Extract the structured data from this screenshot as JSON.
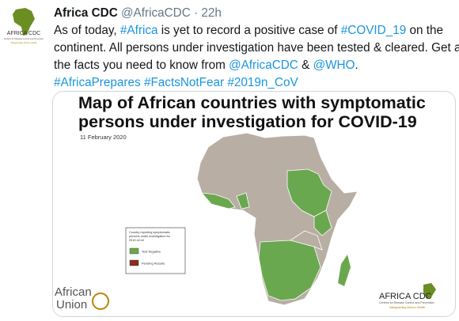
{
  "tweet": {
    "author": "Africa CDC",
    "handle": "@AfricaCDC",
    "separator": "·",
    "time": "22h",
    "avatar": {
      "name": "AFRICA CDC",
      "subtitle": "Centres for Disease Control and Prevention",
      "tagline": "Safeguarding Africa's Health"
    },
    "lines": [
      [
        {
          "text": "As of today, "
        },
        {
          "text": "#Africa",
          "link": true
        },
        {
          "text": " is yet to record a positive case of "
        },
        {
          "text": "#COVID_19",
          "link": true
        },
        {
          "text": " on the"
        }
      ],
      [
        {
          "text": "continent. All persons under investigation have been tested & cleared. Get all"
        }
      ],
      [
        {
          "text": "the facts you need to know from "
        },
        {
          "text": "@AfricaCDC",
          "link": true
        },
        {
          "text": " & "
        },
        {
          "text": "@WHO",
          "link": true
        },
        {
          "text": "."
        }
      ],
      [
        {
          "text": "#AfricaPrepares",
          "link": true
        },
        {
          "text": " "
        },
        {
          "text": "#FactsNotFear",
          "link": true
        },
        {
          "text": " "
        },
        {
          "text": "#2019n_CoV",
          "link": true
        }
      ]
    ]
  },
  "image": {
    "title_lines": [
      "Map of African countries with symptomatic",
      "persons under investigation for COVID-19"
    ],
    "date": "11 February 2020",
    "legend": {
      "title_lines": [
        "Country reporting symptomatic",
        "persons under investigation for",
        "2019-nCoV"
      ],
      "items": [
        {
          "label": "Test Negative",
          "color": "#6aa84f"
        },
        {
          "label": "Pending Results",
          "color": "#8b2e1f"
        }
      ]
    },
    "left_logo": {
      "line1": "African",
      "line2": "Union"
    },
    "right_logo": {
      "name": "AFRICA CDC",
      "subtitle": "Centres for Disease Control and Prevention",
      "tagline": "Safeguarding Africa's Health"
    }
  }
}
